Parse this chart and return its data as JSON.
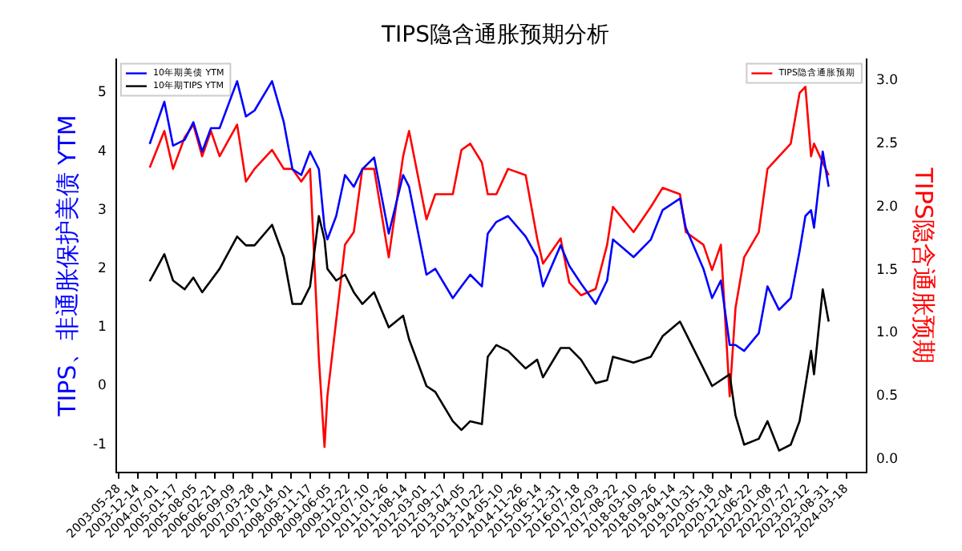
{
  "chart_data": {
    "type": "line",
    "title": "TIPS隐含通胀预期分析",
    "ylabel": "TIPS、非通胀保护美债 YTM",
    "y2label": "TIPS隐含通胀预期",
    "x": [
      "2004-04",
      "2004-09",
      "2004-12",
      "2005-04",
      "2005-07",
      "2005-10",
      "2006-01",
      "2006-04",
      "2006-10",
      "2007-01",
      "2007-04",
      "2007-10",
      "2008-02",
      "2008-05",
      "2008-08",
      "2008-11",
      "2009-02",
      "2009-04",
      "2009-05",
      "2009-08",
      "2009-11",
      "2010-02",
      "2010-05",
      "2010-09",
      "2011-02",
      "2011-07",
      "2011-09",
      "2012-03",
      "2012-06",
      "2012-12",
      "2013-03",
      "2013-06",
      "2013-10",
      "2013-12",
      "2014-03",
      "2014-07",
      "2015-01",
      "2015-05",
      "2015-07",
      "2016-01",
      "2016-04",
      "2016-08",
      "2017-01",
      "2017-05",
      "2017-07",
      "2018-02",
      "2018-08",
      "2018-12",
      "2019-06",
      "2019-08",
      "2020-02",
      "2020-05",
      "2020-08",
      "2020-11",
      "2021-01",
      "2021-04",
      "2021-09",
      "2021-12",
      "2022-04",
      "2022-08",
      "2022-11",
      "2023-01",
      "2023-03",
      "2023-04",
      "2023-07",
      "2023-09"
    ],
    "series": [
      {
        "name": "10年期美债 YTM",
        "color": "#0000ff",
        "values": [
          4.13,
          4.85,
          4.1,
          4.2,
          4.5,
          4.0,
          4.4,
          4.4,
          5.2,
          4.6,
          4.7,
          5.2,
          4.5,
          3.7,
          3.6,
          4.0,
          3.7,
          2.7,
          2.5,
          2.9,
          3.6,
          3.4,
          3.7,
          3.9,
          2.6,
          3.6,
          3.4,
          1.9,
          2.0,
          1.5,
          1.7,
          1.9,
          1.7,
          2.6,
          2.8,
          2.9,
          2.55,
          2.2,
          1.7,
          2.4,
          2.05,
          1.75,
          1.4,
          1.8,
          2.5,
          2.2,
          2.5,
          3.0,
          3.2,
          2.7,
          2.0,
          1.5,
          1.8,
          0.7,
          0.7,
          0.6,
          0.9,
          1.7,
          1.3,
          1.5,
          2.3,
          2.9,
          3.0,
          2.7,
          4.0,
          3.4
        ]
      },
      {
        "name": "10年期TIPS YTM",
        "color": "#000000",
        "values": [
          1.79,
          2.25,
          1.8,
          1.65,
          1.85,
          1.6,
          1.8,
          2.0,
          2.55,
          2.4,
          2.4,
          2.75,
          2.2,
          1.4,
          1.4,
          1.7,
          2.9,
          2.5,
          2.0,
          1.8,
          1.9,
          1.6,
          1.4,
          1.6,
          1.0,
          1.2,
          0.8,
          0.0,
          -0.1,
          -0.6,
          -0.75,
          -0.6,
          -0.65,
          0.5,
          0.7,
          0.6,
          0.3,
          0.45,
          0.15,
          0.65,
          0.65,
          0.45,
          0.05,
          0.1,
          0.5,
          0.4,
          0.5,
          0.85,
          1.1,
          0.9,
          0.3,
          0.0,
          0.1,
          0.2,
          -0.5,
          -1.0,
          -0.9,
          -0.6,
          -1.1,
          -1.0,
          -0.6,
          0.0,
          0.6,
          0.2,
          1.65,
          1.1
        ]
      },
      {
        "name": "TIPS隐含通胀预期",
        "color": "#ff0000",
        "axis": "y2",
        "values": [
          2.31,
          2.6,
          2.3,
          2.55,
          2.65,
          2.4,
          2.6,
          2.4,
          2.65,
          2.2,
          2.3,
          2.45,
          2.3,
          2.3,
          2.2,
          2.3,
          0.8,
          0.1,
          0.5,
          1.1,
          1.7,
          1.8,
          2.3,
          2.3,
          1.6,
          2.4,
          2.6,
          1.9,
          2.1,
          2.1,
          2.45,
          2.5,
          2.35,
          2.1,
          2.1,
          2.3,
          2.25,
          1.75,
          1.55,
          1.75,
          1.4,
          1.3,
          1.35,
          1.7,
          2.0,
          1.8,
          2.0,
          2.15,
          2.1,
          1.8,
          1.7,
          1.5,
          1.7,
          0.5,
          1.2,
          1.6,
          1.8,
          2.3,
          2.4,
          2.5,
          2.9,
          2.95,
          2.4,
          2.5,
          2.35,
          2.25
        ]
      }
    ],
    "xlim": [
      "2003-05-01",
      "2024-10-15"
    ],
    "xticks": [
      {
        "value": "2003-05-28",
        "label": "2003-05-28"
      },
      {
        "value": "2003-12-14",
        "label": "2003-12-14"
      },
      {
        "value": "2004-07-01",
        "label": "2004-07-01"
      },
      {
        "value": "2005-01-17",
        "label": "2005-01-17"
      },
      {
        "value": "2005-08-05",
        "label": "2005-08-05"
      },
      {
        "value": "2006-02-21",
        "label": "2006-02-21"
      },
      {
        "value": "2006-09-09",
        "label": "2006-09-09"
      },
      {
        "value": "2007-03-28",
        "label": "2007-03-28"
      },
      {
        "value": "2007-10-14",
        "label": "2007-10-14"
      },
      {
        "value": "2008-05-01",
        "label": "2008-05-01"
      },
      {
        "value": "2008-11-17",
        "label": "2008-11-17"
      },
      {
        "value": "2009-06-05",
        "label": "2009-06-05"
      },
      {
        "value": "2009-12-22",
        "label": "2009-12-22"
      },
      {
        "value": "2010-07-10",
        "label": "2010-07-10"
      },
      {
        "value": "2011-01-26",
        "label": "2011-01-26"
      },
      {
        "value": "2011-08-14",
        "label": "2011-08-14"
      },
      {
        "value": "2012-03-01",
        "label": "2012-03-01"
      },
      {
        "value": "2012-09-17",
        "label": "2012-09-17"
      },
      {
        "value": "2013-04-05",
        "label": "2013-04-05"
      },
      {
        "value": "2013-10-22",
        "label": "2013-10-22"
      },
      {
        "value": "2014-05-10",
        "label": "2014-05-10"
      },
      {
        "value": "2014-11-26",
        "label": "2014-11-26"
      },
      {
        "value": "2015-06-14",
        "label": "2015-06-14"
      },
      {
        "value": "2015-12-31",
        "label": "2015-12-31"
      },
      {
        "value": "2016-07-18",
        "label": "2016-07-18"
      },
      {
        "value": "2017-02-03",
        "label": "2017-02-03"
      },
      {
        "value": "2017-08-22",
        "label": "2017-08-22"
      },
      {
        "value": "2018-03-10",
        "label": "2018-03-10"
      },
      {
        "value": "2018-09-26",
        "label": "2018-09-26"
      },
      {
        "value": "2019-04-14",
        "label": "2019-04-14"
      },
      {
        "value": "2019-10-31",
        "label": "2019-10-31"
      },
      {
        "value": "2020-05-18",
        "label": "2020-05-18"
      },
      {
        "value": "2020-12-04",
        "label": "2020-12-04"
      },
      {
        "value": "2021-06-22",
        "label": "2021-06-22"
      },
      {
        "value": "2022-01-08",
        "label": "2022-01-08"
      },
      {
        "value": "2022-07-27",
        "label": "2022-07-27"
      },
      {
        "value": "2023-02-12",
        "label": "2023-02-12"
      },
      {
        "value": "2023-08-31",
        "label": "2023-08-31"
      },
      {
        "value": "2024-03-18",
        "label": "2024-03-18"
      }
    ],
    "ylim": [
      -1.47,
      5.58
    ],
    "yticks": [
      -1,
      0,
      1,
      2,
      3,
      4,
      5
    ],
    "y2lim": [
      -0.1,
      3.17
    ],
    "y2ticks": [
      {
        "value": 0,
        "label": "0.0"
      },
      {
        "value": 0.5,
        "label": "0.5"
      },
      {
        "value": 1,
        "label": "1.0"
      },
      {
        "value": 1.5,
        "label": "1.5"
      },
      {
        "value": 2,
        "label": "2.0"
      },
      {
        "value": 2.5,
        "label": "2.5"
      },
      {
        "value": 3,
        "label": "3.0"
      }
    ],
    "grid": false,
    "legend": "top left",
    "marker": "none",
    "line_style": "solid"
  }
}
